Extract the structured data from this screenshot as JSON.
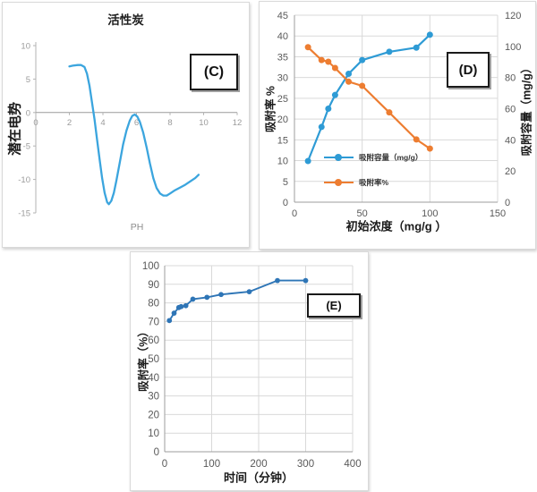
{
  "figure": {
    "background": "#ffffff"
  },
  "colors": {
    "grid": "#d9d9d9",
    "axis": "#9e9e9e",
    "tick_text": "#595959",
    "c_tick_text": "#9b9b9b",
    "panel_border": "#d9d9d9",
    "annotation_box_border": "#1a1a1a"
  },
  "chart_data": [
    {
      "id": "C",
      "type": "line",
      "title": "活性炭",
      "xlabel": "PH",
      "ylabel": "潜在电势",
      "annotation": "(C)",
      "xlim": [
        0,
        12
      ],
      "ylim": [
        -15,
        10
      ],
      "xticks": [
        0,
        2,
        4,
        6,
        8,
        10,
        12
      ],
      "yticks": [
        10,
        5,
        0,
        -5,
        -10,
        -15
      ],
      "grid": false,
      "legend": false,
      "line_color": "#3ba5de",
      "points": [
        [
          2.0,
          6.9
        ],
        [
          2.2,
          7.0
        ],
        [
          2.5,
          7.1
        ],
        [
          2.7,
          7.1
        ],
        [
          2.9,
          6.8
        ],
        [
          3.05,
          5.8
        ],
        [
          3.2,
          4.0
        ],
        [
          3.35,
          1.5
        ],
        [
          3.5,
          -1.0
        ],
        [
          3.65,
          -4.0
        ],
        [
          3.8,
          -7.0
        ],
        [
          3.95,
          -9.8
        ],
        [
          4.1,
          -12.0
        ],
        [
          4.25,
          -13.4
        ],
        [
          4.35,
          -13.7
        ],
        [
          4.5,
          -13.2
        ],
        [
          4.65,
          -12.0
        ],
        [
          4.8,
          -10.2
        ],
        [
          5.0,
          -7.5
        ],
        [
          5.2,
          -4.8
        ],
        [
          5.4,
          -2.7
        ],
        [
          5.6,
          -1.2
        ],
        [
          5.75,
          -0.5
        ],
        [
          5.9,
          -0.3
        ],
        [
          6.05,
          -0.6
        ],
        [
          6.2,
          -1.4
        ],
        [
          6.4,
          -3.0
        ],
        [
          6.6,
          -5.2
        ],
        [
          6.8,
          -7.6
        ],
        [
          7.0,
          -9.8
        ],
        [
          7.2,
          -11.3
        ],
        [
          7.4,
          -12.1
        ],
        [
          7.6,
          -12.4
        ],
        [
          7.8,
          -12.4
        ],
        [
          8.0,
          -12.1
        ],
        [
          8.3,
          -11.6
        ],
        [
          8.6,
          -11.2
        ],
        [
          8.9,
          -10.8
        ],
        [
          9.2,
          -10.3
        ],
        [
          9.5,
          -9.8
        ],
        [
          9.7,
          -9.3
        ]
      ]
    },
    {
      "id": "D",
      "type": "line",
      "title": "",
      "xlabel": "初始浓度（mg/g ）",
      "ylabel_left": "吸附率 %",
      "ylabel_right": "吸附容量（mg/g）",
      "annotation": "(D)",
      "xlim": [
        0,
        150
      ],
      "ylim_left": [
        0,
        45
      ],
      "ylim_right": [
        0,
        120
      ],
      "xticks": [
        0,
        50,
        100,
        150
      ],
      "yticks_left": [
        0,
        5,
        10,
        15,
        20,
        25,
        30,
        35,
        40,
        45
      ],
      "yticks_right": [
        0,
        20,
        40,
        60,
        80,
        100,
        120
      ],
      "grid": true,
      "legend_position": "inside-bottom-left",
      "series": [
        {
          "name": "吸附容量（mg/g）",
          "color": "#2e9bd5",
          "marker": "circle",
          "axis_per_legend": "right",
          "x": [
            10,
            20,
            25,
            30,
            40,
            50,
            70,
            90,
            100
          ],
          "y_left_scale": [
            9.9,
            18.1,
            22.5,
            25.8,
            30.9,
            34.2,
            36.2,
            37.2,
            40.3
          ],
          "y_right_scale": [
            26.4,
            48.3,
            60.0,
            68.8,
            82.4,
            91.2,
            96.5,
            99.2,
            107.5
          ]
        },
        {
          "name": "吸附率%",
          "color": "#ed7d31",
          "marker": "circle",
          "axis_per_legend": "left",
          "x": [
            10,
            20,
            25,
            30,
            40,
            50,
            70,
            90,
            100
          ],
          "y_left_scale": [
            37.3,
            34.2,
            33.8,
            32.3,
            29.0,
            28.0,
            21.6,
            15.1,
            12.9
          ]
        }
      ]
    },
    {
      "id": "E",
      "type": "line",
      "title": "",
      "xlabel": "时间（分钟）",
      "ylabel": "吸附率（%）",
      "annotation": "(E)",
      "xlim": [
        0,
        400
      ],
      "ylim": [
        0,
        100
      ],
      "xticks": [
        0,
        100,
        200,
        300,
        400
      ],
      "yticks": [
        0,
        10,
        20,
        30,
        40,
        50,
        60,
        70,
        80,
        90,
        100
      ],
      "grid": true,
      "legend": false,
      "series": [
        {
          "name": "吸附率（%）",
          "color": "#2e75b6",
          "marker": "circle",
          "x": [
            10,
            20,
            30,
            35,
            45,
            60,
            90,
            120,
            180,
            240,
            300
          ],
          "y": [
            70.5,
            74.5,
            77.5,
            78.0,
            78.5,
            82.0,
            83.0,
            84.5,
            86.0,
            92.0,
            92.0
          ]
        }
      ]
    }
  ]
}
